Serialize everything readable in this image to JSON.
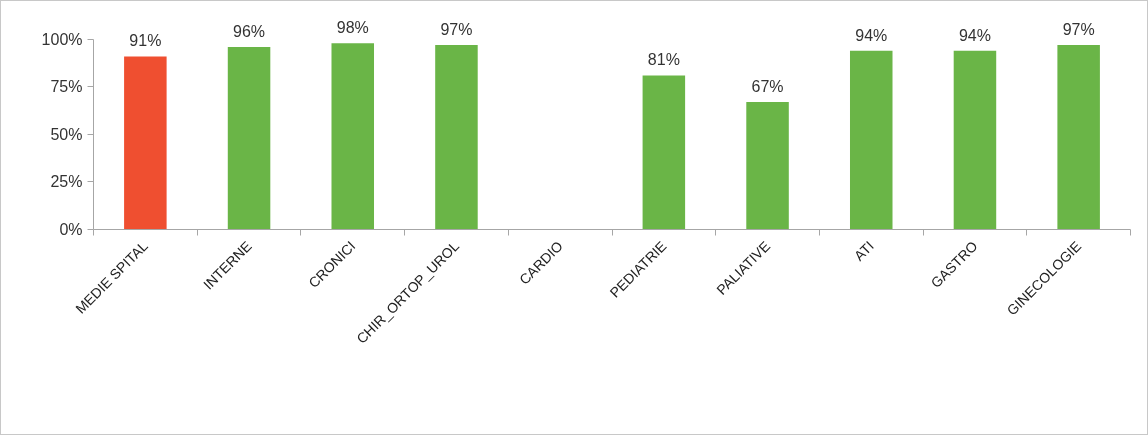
{
  "chart_data": {
    "type": "bar",
    "categories": [
      "MEDIE SPITAL",
      "INTERNE",
      "CRONICI",
      "CHIR_ORTOP_UROL",
      "CARDIO",
      "PEDIATRIE",
      "PALIATIVE",
      "ATI",
      "GASTRO",
      "GINECOLOGIE"
    ],
    "values": [
      91,
      96,
      98,
      97,
      null,
      81,
      67,
      94,
      94,
      97
    ],
    "colors": [
      "#ef4f30",
      "#6ab547",
      "#6ab547",
      "#6ab547",
      "#6ab547",
      "#6ab547",
      "#6ab547",
      "#6ab547",
      "#6ab547",
      "#6ab547"
    ],
    "value_labels": [
      "91%",
      "96%",
      "98%",
      "97%",
      null,
      "81%",
      "67%",
      "94%",
      "94%",
      "97%"
    ],
    "ylim": [
      0,
      100
    ],
    "yticks": [
      {
        "value": 0,
        "label": "0%"
      },
      {
        "value": 25,
        "label": "25%"
      },
      {
        "value": 50,
        "label": "50%"
      },
      {
        "value": 75,
        "label": "75%"
      },
      {
        "value": 100,
        "label": "100%"
      }
    ]
  }
}
